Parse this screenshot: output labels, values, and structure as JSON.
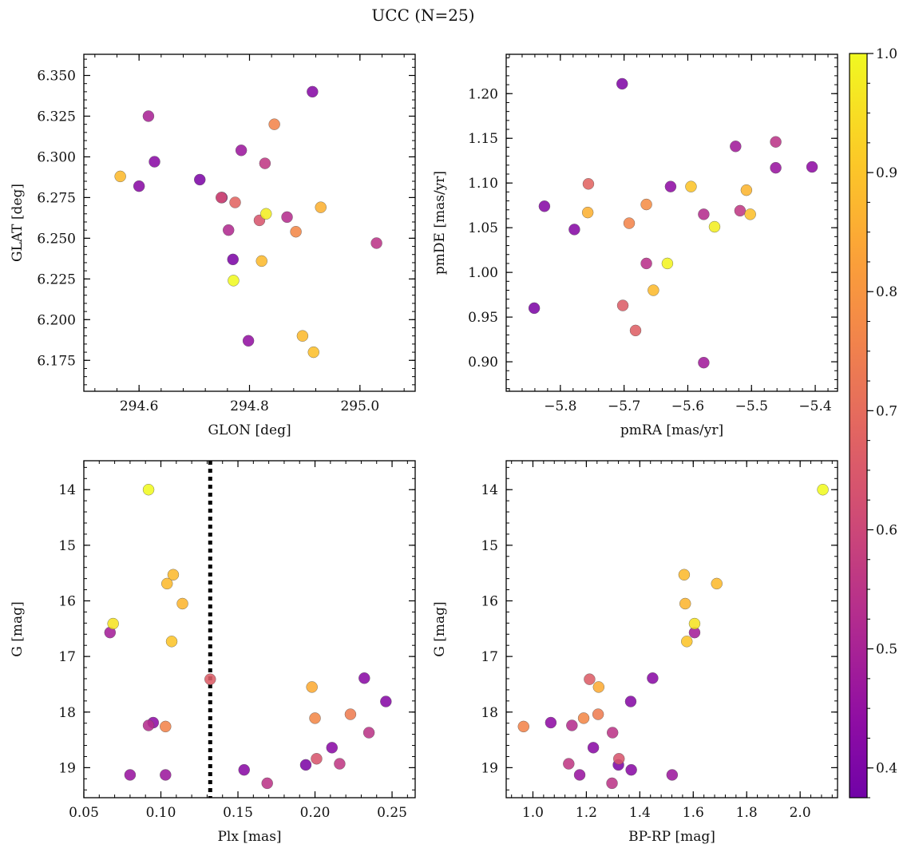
{
  "title": "UCC (N=25)",
  "colorbar": {
    "ticks": [
      "0.4",
      "0.5",
      "0.6",
      "0.7",
      "0.8",
      "0.9",
      "1.0"
    ],
    "tick_values": [
      0.4,
      0.5,
      0.6,
      0.7,
      0.8,
      0.9,
      1.0
    ],
    "range": [
      0.375,
      1.0
    ],
    "colormap": "plasma"
  },
  "chart_data": [
    {
      "type": "scatter",
      "title": "",
      "xlabel": "GLON [deg]",
      "ylabel": "GLAT [deg]",
      "xlim": [
        294.5,
        295.1
      ],
      "ylim": [
        6.156,
        6.363
      ],
      "y_inverted": false,
      "xticks": [
        294.6,
        294.8,
        295.0
      ],
      "xtick_labels": [
        "294.6",
        "294.8",
        "295.0"
      ],
      "yticks": [
        6.175,
        6.2,
        6.225,
        6.25,
        6.275,
        6.3,
        6.325,
        6.35
      ],
      "ytick_labels": [
        "6.175",
        "6.200",
        "6.225",
        "6.250",
        "6.275",
        "6.300",
        "6.325",
        "6.350"
      ],
      "points": [
        {
          "x": 294.566,
          "y": 6.288,
          "c": 0.88
        },
        {
          "x": 294.6,
          "y": 6.282,
          "c": 0.43
        },
        {
          "x": 294.617,
          "y": 6.325,
          "c": 0.5
        },
        {
          "x": 294.628,
          "y": 6.297,
          "c": 0.43
        },
        {
          "x": 294.71,
          "y": 6.286,
          "c": 0.4
        },
        {
          "x": 294.749,
          "y": 6.275,
          "c": 0.62
        },
        {
          "x": 294.75,
          "y": 6.275,
          "c": 0.44
        },
        {
          "x": 294.762,
          "y": 6.255,
          "c": 0.52
        },
        {
          "x": 294.77,
          "y": 6.237,
          "c": 0.4
        },
        {
          "x": 294.771,
          "y": 6.224,
          "c": 1.0
        },
        {
          "x": 294.774,
          "y": 6.272,
          "c": 0.68
        },
        {
          "x": 294.785,
          "y": 6.304,
          "c": 0.47
        },
        {
          "x": 294.798,
          "y": 6.187,
          "c": 0.45
        },
        {
          "x": 294.818,
          "y": 6.261,
          "c": 0.64
        },
        {
          "x": 294.822,
          "y": 6.236,
          "c": 0.88
        },
        {
          "x": 294.828,
          "y": 6.296,
          "c": 0.56
        },
        {
          "x": 294.83,
          "y": 6.265,
          "c": 0.98
        },
        {
          "x": 294.845,
          "y": 6.32,
          "c": 0.76
        },
        {
          "x": 294.868,
          "y": 6.263,
          "c": 0.53
        },
        {
          "x": 294.884,
          "y": 6.254,
          "c": 0.77
        },
        {
          "x": 294.896,
          "y": 6.19,
          "c": 0.88
        },
        {
          "x": 294.914,
          "y": 6.34,
          "c": 0.42
        },
        {
          "x": 294.916,
          "y": 6.18,
          "c": 0.89
        },
        {
          "x": 294.929,
          "y": 6.269,
          "c": 0.86
        },
        {
          "x": 295.03,
          "y": 6.247,
          "c": 0.55
        }
      ]
    },
    {
      "type": "scatter",
      "title": "",
      "xlabel": "pmRA [mas/yr]",
      "ylabel": "pmDE [mas/yr]",
      "xlim": [
        -5.885,
        -5.365
      ],
      "ylim": [
        0.867,
        1.244
      ],
      "y_inverted": false,
      "xticks": [
        -5.8,
        -5.7,
        -5.6,
        -5.5,
        -5.4
      ],
      "xtick_labels": [
        "−5.8",
        "−5.7",
        "−5.6",
        "−5.5",
        "−5.4"
      ],
      "yticks": [
        0.9,
        0.95,
        1.0,
        1.05,
        1.1,
        1.15,
        1.2
      ],
      "ytick_labels": [
        "0.90",
        "0.95",
        "1.00",
        "1.05",
        "1.10",
        "1.15",
        "1.20"
      ],
      "points": [
        {
          "x": -5.841,
          "y": 0.96,
          "c": 0.4
        },
        {
          "x": -5.825,
          "y": 1.074,
          "c": 0.42
        },
        {
          "x": -5.778,
          "y": 1.048,
          "c": 0.42
        },
        {
          "x": -5.756,
          "y": 1.099,
          "c": 0.68
        },
        {
          "x": -5.757,
          "y": 1.067,
          "c": 0.86
        },
        {
          "x": -5.703,
          "y": 1.211,
          "c": 0.41
        },
        {
          "x": -5.702,
          "y": 0.963,
          "c": 0.66
        },
        {
          "x": -5.692,
          "y": 1.055,
          "c": 0.76
        },
        {
          "x": -5.682,
          "y": 0.935,
          "c": 0.67
        },
        {
          "x": -5.665,
          "y": 1.076,
          "c": 0.78
        },
        {
          "x": -5.665,
          "y": 1.01,
          "c": 0.54
        },
        {
          "x": -5.654,
          "y": 0.98,
          "c": 0.88
        },
        {
          "x": -5.632,
          "y": 1.01,
          "c": 0.99
        },
        {
          "x": -5.627,
          "y": 1.096,
          "c": 0.44
        },
        {
          "x": -5.595,
          "y": 1.096,
          "c": 0.9
        },
        {
          "x": -5.575,
          "y": 1.065,
          "c": 0.53
        },
        {
          "x": -5.575,
          "y": 0.899,
          "c": 0.48
        },
        {
          "x": -5.558,
          "y": 1.051,
          "c": 0.98
        },
        {
          "x": -5.525,
          "y": 1.141,
          "c": 0.48
        },
        {
          "x": -5.518,
          "y": 1.069,
          "c": 0.56
        },
        {
          "x": -5.508,
          "y": 1.092,
          "c": 0.87
        },
        {
          "x": -5.502,
          "y": 1.065,
          "c": 0.89
        },
        {
          "x": -5.462,
          "y": 1.146,
          "c": 0.55
        },
        {
          "x": -5.462,
          "y": 1.117,
          "c": 0.46
        },
        {
          "x": -5.405,
          "y": 1.118,
          "c": 0.44
        }
      ]
    },
    {
      "type": "scatter",
      "title": "",
      "xlabel": "Plx [mas]",
      "ylabel": "G [mag]",
      "xlim": [
        0.05,
        0.265
      ],
      "ylim": [
        13.48,
        19.54
      ],
      "y_inverted": true,
      "xticks": [
        0.05,
        0.1,
        0.15,
        0.2,
        0.25
      ],
      "xtick_labels": [
        "0.05",
        "0.10",
        "0.15",
        "0.20",
        "0.25"
      ],
      "yticks": [
        14,
        15,
        16,
        17,
        18,
        19
      ],
      "ytick_labels": [
        "14",
        "15",
        "16",
        "17",
        "18",
        "19"
      ],
      "vline": {
        "x": 0.132,
        "style": "dotted"
      },
      "points": [
        {
          "x": 0.092,
          "y": 14.0,
          "c": 1.0
        },
        {
          "x": 0.108,
          "y": 15.53,
          "c": 0.88
        },
        {
          "x": 0.104,
          "y": 15.69,
          "c": 0.88
        },
        {
          "x": 0.114,
          "y": 16.05,
          "c": 0.87
        },
        {
          "x": 0.069,
          "y": 16.41,
          "c": 0.96
        },
        {
          "x": 0.067,
          "y": 16.57,
          "c": 0.49
        },
        {
          "x": 0.107,
          "y": 16.73,
          "c": 0.9
        },
        {
          "x": 0.132,
          "y": 17.41,
          "c": 0.66
        },
        {
          "x": 0.232,
          "y": 17.39,
          "c": 0.43
        },
        {
          "x": 0.198,
          "y": 17.55,
          "c": 0.85
        },
        {
          "x": 0.246,
          "y": 17.81,
          "c": 0.42
        },
        {
          "x": 0.223,
          "y": 18.04,
          "c": 0.74
        },
        {
          "x": 0.2,
          "y": 18.11,
          "c": 0.77
        },
        {
          "x": 0.095,
          "y": 18.19,
          "c": 0.44
        },
        {
          "x": 0.092,
          "y": 18.24,
          "c": 0.53
        },
        {
          "x": 0.103,
          "y": 18.26,
          "c": 0.76
        },
        {
          "x": 0.235,
          "y": 18.37,
          "c": 0.55
        },
        {
          "x": 0.211,
          "y": 18.64,
          "c": 0.43
        },
        {
          "x": 0.201,
          "y": 18.84,
          "c": 0.64
        },
        {
          "x": 0.216,
          "y": 18.93,
          "c": 0.56
        },
        {
          "x": 0.194,
          "y": 18.95,
          "c": 0.4
        },
        {
          "x": 0.154,
          "y": 19.04,
          "c": 0.43
        },
        {
          "x": 0.08,
          "y": 19.13,
          "c": 0.46
        },
        {
          "x": 0.103,
          "y": 19.13,
          "c": 0.47
        },
        {
          "x": 0.169,
          "y": 19.28,
          "c": 0.55
        }
      ]
    },
    {
      "type": "scatter",
      "title": "",
      "xlabel": "BP-RP [mag]",
      "ylabel": "G [mag]",
      "xlim": [
        0.9,
        2.14
      ],
      "ylim": [
        13.48,
        19.54
      ],
      "y_inverted": true,
      "xticks": [
        1.0,
        1.2,
        1.4,
        1.6,
        1.8,
        2.0
      ],
      "xtick_labels": [
        "1.0",
        "1.2",
        "1.4",
        "1.6",
        "1.8",
        "2.0"
      ],
      "yticks": [
        14,
        15,
        16,
        17,
        18,
        19
      ],
      "ytick_labels": [
        "14",
        "15",
        "16",
        "17",
        "18",
        "19"
      ],
      "points": [
        {
          "x": 2.085,
          "y": 14.0,
          "c": 1.0
        },
        {
          "x": 1.566,
          "y": 15.53,
          "c": 0.88
        },
        {
          "x": 1.688,
          "y": 15.69,
          "c": 0.88
        },
        {
          "x": 1.57,
          "y": 16.05,
          "c": 0.87
        },
        {
          "x": 1.605,
          "y": 16.41,
          "c": 0.96
        },
        {
          "x": 1.605,
          "y": 16.57,
          "c": 0.49
        },
        {
          "x": 1.576,
          "y": 16.73,
          "c": 0.9
        },
        {
          "x": 1.212,
          "y": 17.41,
          "c": 0.66
        },
        {
          "x": 1.448,
          "y": 17.39,
          "c": 0.43
        },
        {
          "x": 1.246,
          "y": 17.55,
          "c": 0.85
        },
        {
          "x": 1.366,
          "y": 17.81,
          "c": 0.42
        },
        {
          "x": 1.244,
          "y": 18.04,
          "c": 0.74
        },
        {
          "x": 1.19,
          "y": 18.11,
          "c": 0.77
        },
        {
          "x": 1.067,
          "y": 18.19,
          "c": 0.44
        },
        {
          "x": 1.146,
          "y": 18.24,
          "c": 0.53
        },
        {
          "x": 0.965,
          "y": 18.26,
          "c": 0.76
        },
        {
          "x": 1.298,
          "y": 18.37,
          "c": 0.55
        },
        {
          "x": 1.226,
          "y": 18.64,
          "c": 0.43
        },
        {
          "x": 1.322,
          "y": 18.84,
          "c": 0.64
        },
        {
          "x": 1.134,
          "y": 18.93,
          "c": 0.56
        },
        {
          "x": 1.32,
          "y": 18.95,
          "c": 0.4
        },
        {
          "x": 1.368,
          "y": 19.04,
          "c": 0.43
        },
        {
          "x": 1.175,
          "y": 19.13,
          "c": 0.46
        },
        {
          "x": 1.521,
          "y": 19.13,
          "c": 0.47
        },
        {
          "x": 1.296,
          "y": 19.28,
          "c": 0.55
        }
      ]
    }
  ]
}
